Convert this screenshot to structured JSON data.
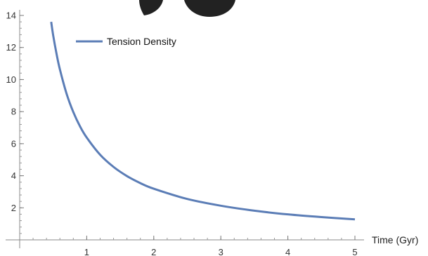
{
  "chart_data": {
    "type": "line",
    "title": "",
    "xlabel": "Time (Gyr)",
    "ylabel": "",
    "xlim": [
      0,
      5
    ],
    "ylim": [
      0,
      14
    ],
    "x_ticks": [
      1,
      2,
      3,
      4,
      5
    ],
    "y_ticks": [
      2,
      4,
      6,
      8,
      10,
      12,
      14
    ],
    "grid": false,
    "legend_position": "top-left",
    "series": [
      {
        "name": "Tension Density",
        "color": "#5B7DB6",
        "x": [
          0.47,
          0.5,
          0.55,
          0.6,
          0.7,
          0.8,
          0.9,
          1.0,
          1.2,
          1.4,
          1.6,
          1.8,
          2.0,
          2.5,
          3.0,
          3.5,
          4.0,
          4.5,
          5.0
        ],
        "y": [
          13.6,
          12.75,
          11.6,
          10.63,
          9.11,
          7.97,
          7.08,
          6.38,
          5.31,
          4.55,
          3.98,
          3.54,
          3.19,
          2.55,
          2.13,
          1.82,
          1.59,
          1.42,
          1.28
        ]
      }
    ]
  }
}
